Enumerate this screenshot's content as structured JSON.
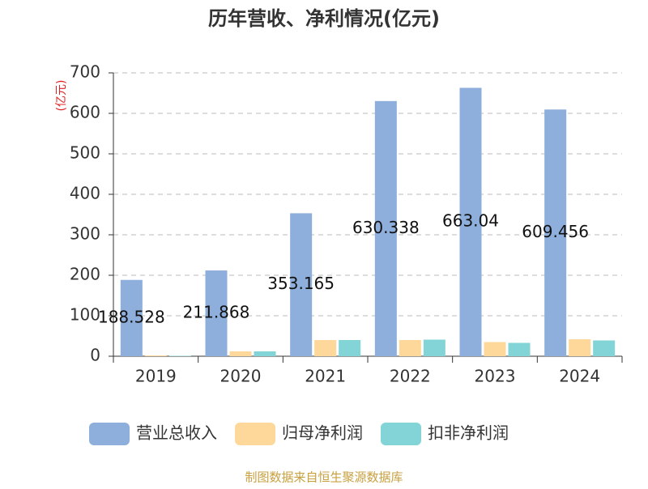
{
  "chart_data": {
    "type": "bar",
    "title": "历年营收、净利情况(亿元)",
    "y_label": "(亿元)",
    "source": "制图数据来自恒生聚源数据库",
    "categories": [
      "2019",
      "2020",
      "2021",
      "2022",
      "2023",
      "2024"
    ],
    "series": [
      {
        "name": "营业总收入",
        "color": "#8eaedb",
        "values": [
          188.528,
          211.868,
          353.165,
          630.338,
          663.04,
          609.456
        ],
        "show_values": true
      },
      {
        "name": "归母净利润",
        "color": "#fdd89a",
        "values": [
          2,
          12,
          40,
          40,
          35,
          42
        ],
        "show_values": false
      },
      {
        "name": "扣非净利润",
        "color": "#82d4d6",
        "values": [
          1,
          12,
          40,
          41,
          33,
          39
        ],
        "show_values": false
      }
    ],
    "ylim": [
      0,
      700
    ],
    "yticks": [
      0,
      100,
      200,
      300,
      400,
      500,
      600,
      700
    ],
    "grid": true
  }
}
